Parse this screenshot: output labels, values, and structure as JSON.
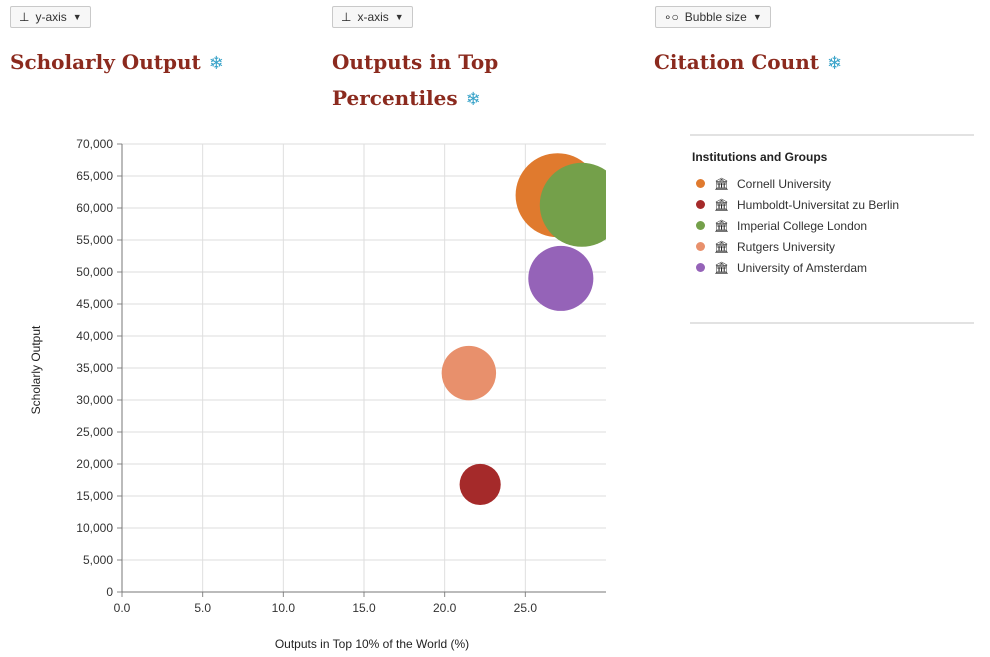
{
  "controls": {
    "y_axis": {
      "label": "y-axis",
      "icon": "y-axis-icon"
    },
    "x_axis": {
      "label": "x-axis",
      "icon": "x-axis-icon"
    },
    "bubble": {
      "label": "Bubble size",
      "icon": "bubble-size-icon"
    }
  },
  "metrics": {
    "y": {
      "title": "Scholarly Output"
    },
    "x": {
      "title_line1": "Outputs in Top",
      "title_line2": "Percentiles"
    },
    "size": {
      "title": "Citation Count"
    }
  },
  "legend": {
    "title": "Institutions and Groups",
    "items": [
      {
        "name": "Cornell University",
        "color": "#e07a2e"
      },
      {
        "name": "Humboldt-Universitat zu Berlin",
        "color": "#a52a2a"
      },
      {
        "name": "Imperial College London",
        "color": "#74a04a"
      },
      {
        "name": "Rutgers University",
        "color": "#e8906c"
      },
      {
        "name": "University of Amsterdam",
        "color": "#9563b8"
      }
    ]
  },
  "chart_data": {
    "type": "scatter",
    "xlabel": "Outputs in Top 10% of the World (%)",
    "ylabel": "Scholarly Output",
    "xlim": [
      0,
      30
    ],
    "ylim": [
      0,
      70000
    ],
    "xticks": [
      0.0,
      5.0,
      10.0,
      15.0,
      20.0,
      25.0
    ],
    "yticks": [
      0,
      5000,
      10000,
      15000,
      20000,
      25000,
      30000,
      35000,
      40000,
      45000,
      50000,
      55000,
      60000,
      65000,
      70000
    ],
    "grid": true,
    "series": [
      {
        "name": "Cornell University",
        "x": 27.0,
        "y": 62000,
        "size": 1.0,
        "color": "#e07a2e"
      },
      {
        "name": "Humboldt-Universitat zu Berlin",
        "x": 22.2,
        "y": 16800,
        "size": 0.24,
        "color": "#a52a2a"
      },
      {
        "name": "Imperial College London",
        "x": 28.5,
        "y": 60500,
        "size": 1.0,
        "color": "#74a04a"
      },
      {
        "name": "Rutgers University",
        "x": 21.5,
        "y": 34200,
        "size": 0.42,
        "color": "#e8906c"
      },
      {
        "name": "University of Amsterdam",
        "x": 27.2,
        "y": 49000,
        "size": 0.6,
        "color": "#9563b8"
      }
    ]
  }
}
